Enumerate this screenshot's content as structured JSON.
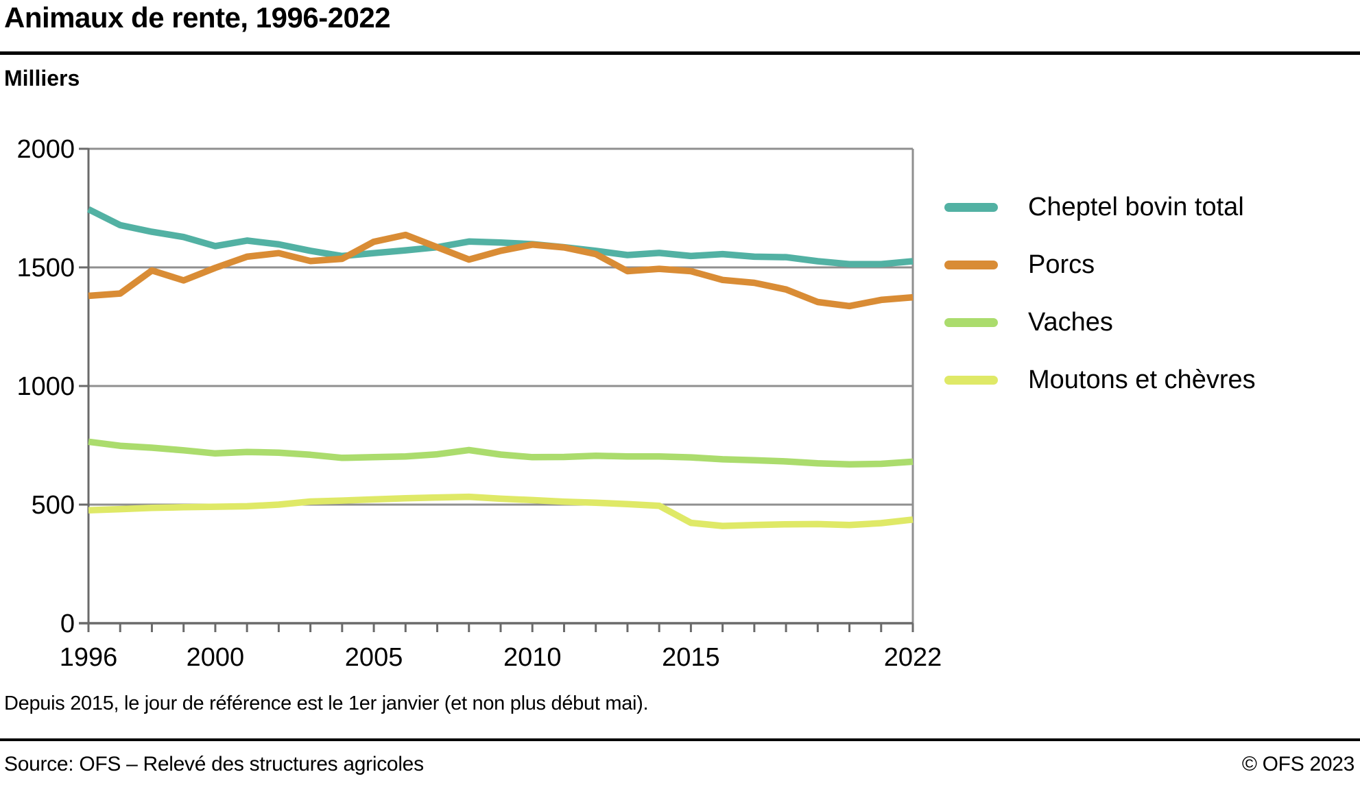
{
  "header": {
    "title": "Animaux de rente, 1996-2022"
  },
  "chart": {
    "unit_label": "Milliers"
  },
  "chart_data": {
    "type": "line",
    "title": "Animaux de rente, 1996-2022",
    "ylabel": "Milliers",
    "xlabel": "",
    "ylim": [
      0,
      2000
    ],
    "yticks": [
      0,
      500,
      1000,
      1500,
      2000
    ],
    "xlim": [
      1996,
      2022
    ],
    "xtick_labeled": [
      1996,
      2000,
      2005,
      2010,
      2015,
      2022
    ],
    "grid": true,
    "legend_position": "right",
    "x": [
      1996,
      1997,
      1998,
      1999,
      2000,
      2001,
      2002,
      2003,
      2004,
      2005,
      2006,
      2007,
      2008,
      2009,
      2010,
      2011,
      2012,
      2013,
      2014,
      2015,
      2016,
      2017,
      2018,
      2019,
      2020,
      2021,
      2022
    ],
    "series": [
      {
        "name": "Cheptel bovin total",
        "color": "#52B1A3",
        "values": [
          1745,
          1678,
          1650,
          1628,
          1590,
          1613,
          1597,
          1570,
          1548,
          1560,
          1572,
          1585,
          1609,
          1605,
          1598,
          1585,
          1570,
          1552,
          1561,
          1548,
          1556,
          1545,
          1543,
          1526,
          1514,
          1514,
          1526
        ]
      },
      {
        "name": "Porcs",
        "color": "#D98C35",
        "values": [
          1380,
          1390,
          1487,
          1445,
          1498,
          1545,
          1560,
          1527,
          1536,
          1608,
          1637,
          1585,
          1533,
          1570,
          1596,
          1584,
          1556,
          1484,
          1494,
          1484,
          1447,
          1435,
          1407,
          1354,
          1337,
          1363,
          1374
        ]
      },
      {
        "name": "Vaches",
        "color": "#ABDC6D",
        "values": [
          765,
          748,
          740,
          729,
          716,
          722,
          719,
          710,
          697,
          700,
          703,
          712,
          730,
          711,
          700,
          701,
          706,
          703,
          703,
          699,
          691,
          687,
          682,
          674,
          670,
          672,
          681
        ]
      },
      {
        "name": "Moutons et chèvres",
        "color": "#DFE967",
        "values": [
          476,
          481,
          486,
          489,
          491,
          493,
          500,
          513,
          517,
          522,
          527,
          530,
          533,
          525,
          519,
          512,
          508,
          502,
          495,
          423,
          410,
          414,
          417,
          418,
          414,
          422,
          437
        ]
      }
    ],
    "style": {
      "grid_color": "#8F8F8F",
      "axis_color": "#6A6A6A",
      "line_width": 9.5
    }
  },
  "footnote": {
    "text": "Depuis 2015, le jour de référence est le 1er janvier (et non plus début mai)."
  },
  "footer": {
    "source": "Source: OFS – Relevé des structures agricoles",
    "copyright": "© OFS 2023"
  }
}
